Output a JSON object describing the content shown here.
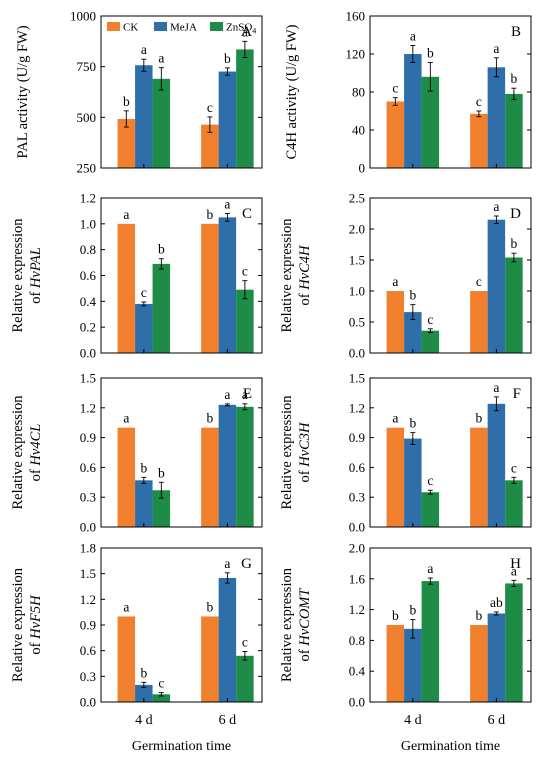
{
  "colors": {
    "CK": "#F07F2E",
    "MeJA": "#2E6FAA",
    "ZnSO4": "#1E8C46"
  },
  "legend": [
    {
      "key": "CK",
      "label": "CK",
      "sub": ""
    },
    {
      "key": "MeJA",
      "label": "MeJA",
      "sub": ""
    },
    {
      "key": "ZnSO4",
      "label": "ZnSO",
      "sub": "4"
    }
  ],
  "x_axis_title": "Germination time",
  "chart_data": [
    {
      "panel": "A",
      "type": "bar",
      "ylabel": "PAL activity (U/g FW)",
      "ylim": [
        250,
        1000
      ],
      "yticks": [
        "250",
        "500",
        "750",
        "1000"
      ],
      "categories": [
        "4 d",
        "6 d"
      ],
      "series": [
        {
          "name": "CK",
          "values": [
            492,
            464
          ],
          "err": [
            40,
            38
          ],
          "sig": [
            "b",
            "c"
          ]
        },
        {
          "name": "MeJA",
          "values": [
            757,
            726
          ],
          "err": [
            30,
            18
          ],
          "sig": [
            "a",
            "b"
          ]
        },
        {
          "name": "ZnSO4",
          "values": [
            690,
            835
          ],
          "err": [
            55,
            40
          ],
          "sig": [
            "a",
            "a"
          ]
        }
      ]
    },
    {
      "panel": "B",
      "type": "bar",
      "ylabel": "C4H activity (U/g FW)",
      "ylim": [
        0,
        160
      ],
      "yticks": [
        "0",
        "40",
        "80",
        "120",
        "160"
      ],
      "categories": [
        "4 d",
        "6 d"
      ],
      "series": [
        {
          "name": "CK",
          "values": [
            70,
            57
          ],
          "err": [
            4,
            3
          ],
          "sig": [
            "c",
            "c"
          ]
        },
        {
          "name": "MeJA",
          "values": [
            120,
            106
          ],
          "err": [
            9,
            10
          ],
          "sig": [
            "a",
            "a"
          ]
        },
        {
          "name": "ZnSO4",
          "values": [
            96,
            78
          ],
          "err": [
            15,
            6
          ],
          "sig": [
            "b",
            "b"
          ]
        }
      ]
    },
    {
      "panel": "C",
      "type": "bar",
      "ylabel_line1": "Relative expression",
      "ylabel_prefix": "of ",
      "ylabel_gene": "HvPAL",
      "ylim": [
        0,
        1.2
      ],
      "yticks": [
        "0.0",
        "0.2",
        "0.4",
        "0.6",
        "0.8",
        "1.0",
        "1.2"
      ],
      "categories": [
        "4 d",
        "6 d"
      ],
      "series": [
        {
          "name": "CK",
          "values": [
            1.0,
            1.0
          ],
          "err": [
            0,
            0
          ],
          "sig": [
            "a",
            "b"
          ]
        },
        {
          "name": "MeJA",
          "values": [
            0.38,
            1.05
          ],
          "err": [
            0.015,
            0.03
          ],
          "sig": [
            "c",
            "a"
          ]
        },
        {
          "name": "ZnSO4",
          "values": [
            0.69,
            0.49
          ],
          "err": [
            0.04,
            0.07
          ],
          "sig": [
            "b",
            "c"
          ]
        }
      ]
    },
    {
      "panel": "D",
      "type": "bar",
      "ylabel_line1": "Relative expression",
      "ylabel_prefix": "of ",
      "ylabel_gene": "HvC4H",
      "ylim": [
        0,
        2.5
      ],
      "yticks": [
        "0.0",
        "0.5",
        "1.0",
        "1.5",
        "2.0",
        "2.5"
      ],
      "categories": [
        "4 d",
        "6 d"
      ],
      "series": [
        {
          "name": "CK",
          "values": [
            1.0,
            1.0
          ],
          "err": [
            0,
            0
          ],
          "sig": [
            "a",
            "c"
          ]
        },
        {
          "name": "MeJA",
          "values": [
            0.66,
            2.15
          ],
          "err": [
            0.12,
            0.06
          ],
          "sig": [
            "b",
            "a"
          ]
        },
        {
          "name": "ZnSO4",
          "values": [
            0.36,
            1.54
          ],
          "err": [
            0.03,
            0.07
          ],
          "sig": [
            "c",
            "b"
          ]
        }
      ]
    },
    {
      "panel": "E",
      "type": "bar",
      "ylabel_line1": "Relative expression",
      "ylabel_prefix": "of ",
      "ylabel_gene": "Hv4CL",
      "ylim": [
        0,
        1.5
      ],
      "yticks": [
        "0.0",
        "0.3",
        "0.6",
        "0.9",
        "1.2",
        "1.5"
      ],
      "categories": [
        "4 d",
        "6 d"
      ],
      "series": [
        {
          "name": "CK",
          "values": [
            1.0,
            1.0
          ],
          "err": [
            0,
            0
          ],
          "sig": [
            "a",
            "b"
          ]
        },
        {
          "name": "MeJA",
          "values": [
            0.47,
            1.23
          ],
          "err": [
            0.03,
            0.01
          ],
          "sig": [
            "b",
            "a"
          ]
        },
        {
          "name": "ZnSO4",
          "values": [
            0.37,
            1.21
          ],
          "err": [
            0.08,
            0.03
          ],
          "sig": [
            "b",
            "a"
          ]
        }
      ]
    },
    {
      "panel": "F",
      "type": "bar",
      "ylabel_line1": "Relative expression",
      "ylabel_prefix": "of ",
      "ylabel_gene": "HvC3H",
      "ylim": [
        0,
        1.5
      ],
      "yticks": [
        "0.0",
        "0.3",
        "0.6",
        "0.9",
        "1.2",
        "1.5"
      ],
      "categories": [
        "4 d",
        "6 d"
      ],
      "series": [
        {
          "name": "CK",
          "values": [
            1.0,
            1.0
          ],
          "err": [
            0,
            0
          ],
          "sig": [
            "a",
            "b"
          ]
        },
        {
          "name": "MeJA",
          "values": [
            0.89,
            1.24
          ],
          "err": [
            0.06,
            0.07
          ],
          "sig": [
            "b",
            "a"
          ]
        },
        {
          "name": "ZnSO4",
          "values": [
            0.35,
            0.47
          ],
          "err": [
            0.02,
            0.03
          ],
          "sig": [
            "c",
            "c"
          ]
        }
      ]
    },
    {
      "panel": "G",
      "type": "bar",
      "ylabel_line1": "Relative expression",
      "ylabel_prefix": "of ",
      "ylabel_gene": "HvF5H",
      "ylim": [
        0,
        1.8
      ],
      "yticks": [
        "0.0",
        "0.3",
        "0.6",
        "0.9",
        "1.2",
        "1.5",
        "1.8"
      ],
      "categories": [
        "4 d",
        "6 d"
      ],
      "series": [
        {
          "name": "CK",
          "values": [
            1.0,
            1.0
          ],
          "err": [
            0,
            0
          ],
          "sig": [
            "a",
            "b"
          ]
        },
        {
          "name": "MeJA",
          "values": [
            0.2,
            1.45
          ],
          "err": [
            0.03,
            0.06
          ],
          "sig": [
            "b",
            "a"
          ]
        },
        {
          "name": "ZnSO4",
          "values": [
            0.09,
            0.54
          ],
          "err": [
            0.02,
            0.05
          ],
          "sig": [
            "c",
            "c"
          ]
        }
      ]
    },
    {
      "panel": "H",
      "type": "bar",
      "ylabel_line1": "Relative expression",
      "ylabel_prefix": "of ",
      "ylabel_gene": "HvCOMT",
      "ylim": [
        0,
        2.0
      ],
      "yticks": [
        "0.0",
        "0.4",
        "0.8",
        "1.2",
        "1.6",
        "2.0"
      ],
      "categories": [
        "4 d",
        "6 d"
      ],
      "series": [
        {
          "name": "CK",
          "values": [
            1.0,
            1.0
          ],
          "err": [
            0,
            0
          ],
          "sig": [
            "b",
            "b"
          ]
        },
        {
          "name": "MeJA",
          "values": [
            0.95,
            1.15
          ],
          "err": [
            0.12,
            0.02
          ],
          "sig": [
            "b",
            "ab"
          ]
        },
        {
          "name": "ZnSO4",
          "values": [
            1.57,
            1.54
          ],
          "err": [
            0.04,
            0.04
          ],
          "sig": [
            "a",
            "a"
          ]
        }
      ]
    }
  ]
}
